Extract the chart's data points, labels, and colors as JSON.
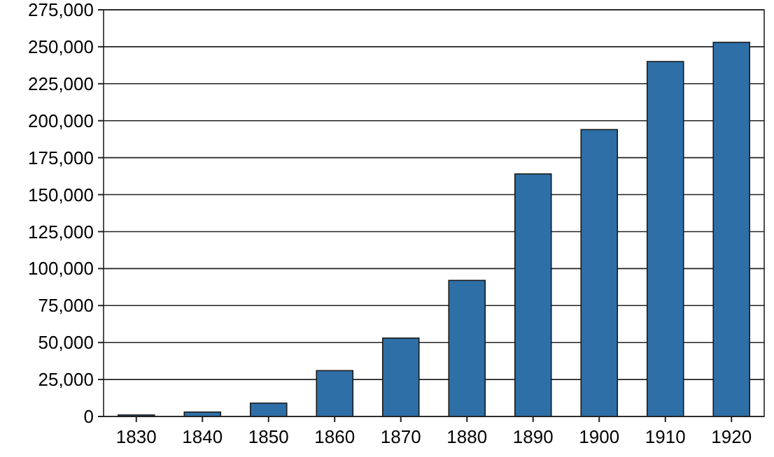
{
  "chart_data": {
    "type": "bar",
    "categories": [
      "1830",
      "1840",
      "1850",
      "1860",
      "1870",
      "1880",
      "1890",
      "1900",
      "1910",
      "1920"
    ],
    "values": [
      1000,
      3000,
      9000,
      31000,
      53000,
      92000,
      164000,
      194000,
      240000,
      253000
    ],
    "color": "#2e6fa7",
    "ylim": [
      0,
      275000
    ],
    "yticks": [
      {
        "value": 0,
        "label": "0"
      },
      {
        "value": 25000,
        "label": "25,000"
      },
      {
        "value": 50000,
        "label": "50,000"
      },
      {
        "value": 75000,
        "label": "75,000"
      },
      {
        "value": 100000,
        "label": "100,000"
      },
      {
        "value": 125000,
        "label": "125,000"
      },
      {
        "value": 150000,
        "label": "150,000"
      },
      {
        "value": 175000,
        "label": "175,000"
      },
      {
        "value": 200000,
        "label": "200,000"
      },
      {
        "value": 225000,
        "label": "225,000"
      },
      {
        "value": 250000,
        "label": "250,000"
      },
      {
        "value": 275000,
        "label": "275,000"
      }
    ],
    "grid": "y"
  }
}
